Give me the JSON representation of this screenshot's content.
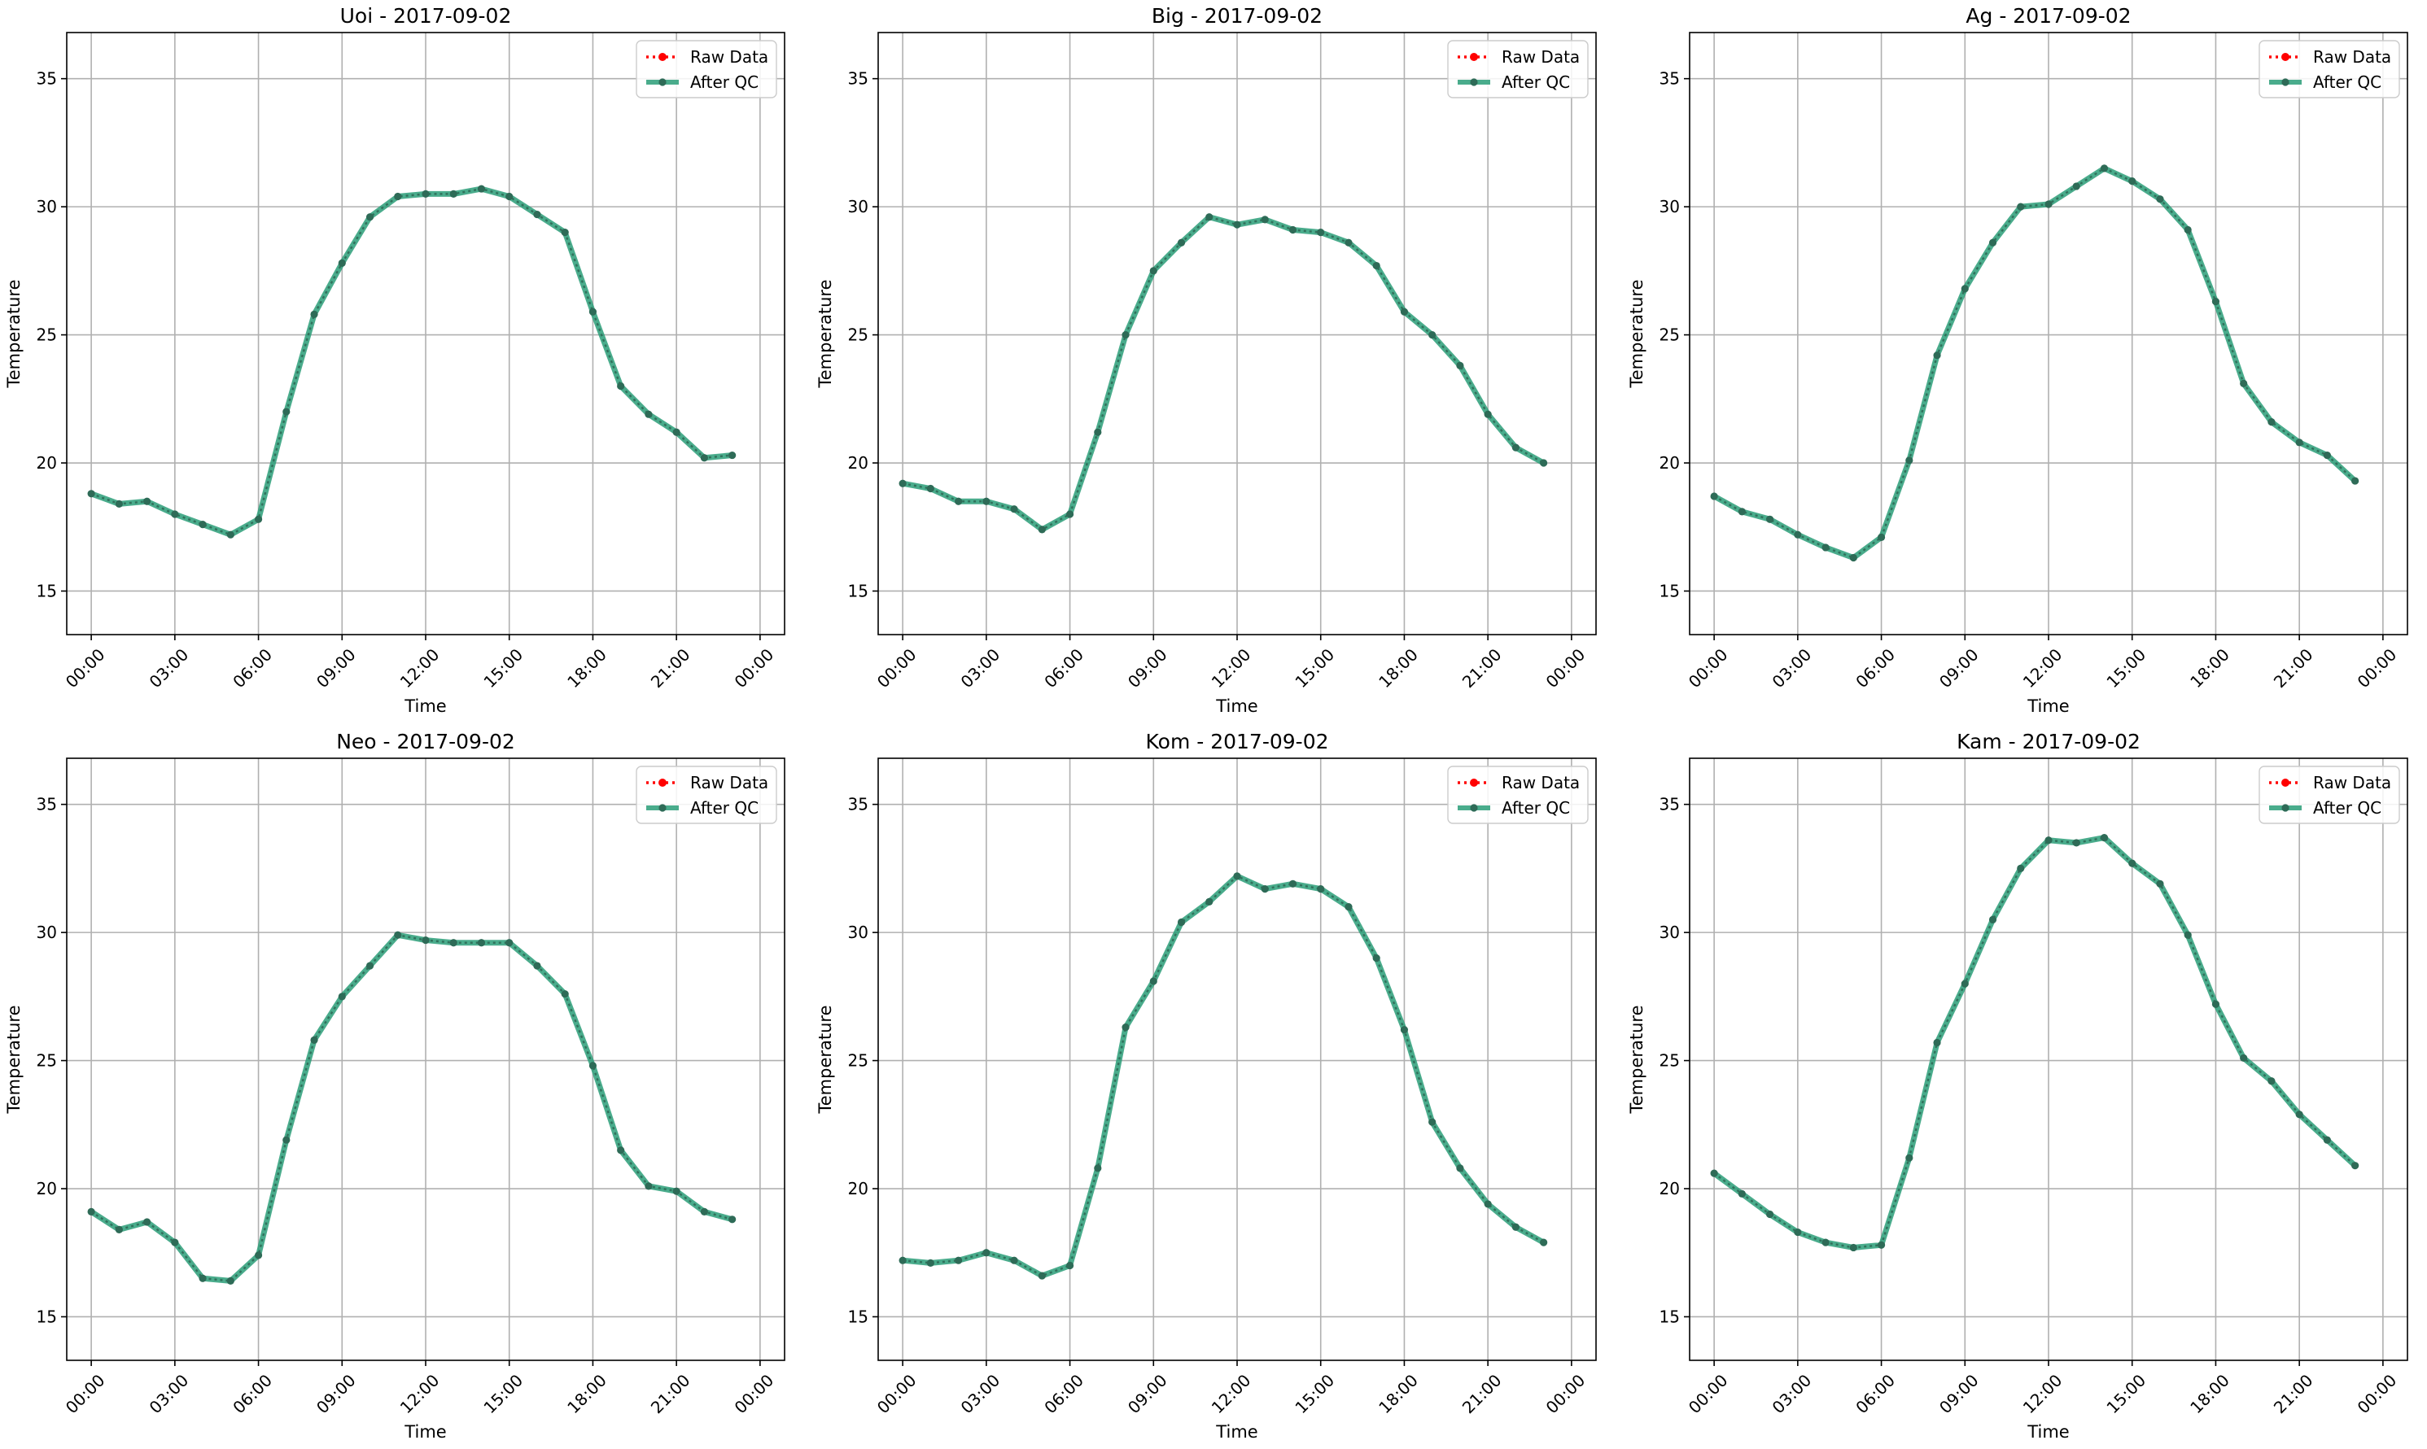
{
  "figure": {
    "legend_labels": {
      "raw": "Raw Data",
      "qc": "After QC"
    },
    "colors": {
      "raw": "#ff0000",
      "qc": "#2a9d78",
      "marker": "#2e6b57",
      "grid": "#b0b0b0"
    }
  },
  "chart_data": [
    {
      "type": "line",
      "title": "Uoi - 2017-09-02",
      "xlabel": "Time",
      "ylabel": "Temperature",
      "ylim": [
        13.3,
        36.8
      ],
      "yticks": [
        "15",
        "20",
        "25",
        "30",
        "35"
      ],
      "xticks": [
        "00:00",
        "03:00",
        "06:00",
        "09:00",
        "12:00",
        "15:00",
        "18:00",
        "21:00",
        "00:00"
      ],
      "grid": true,
      "legend_position": "upper right",
      "x": [
        "00:00",
        "01:00",
        "02:00",
        "03:00",
        "04:00",
        "05:00",
        "06:00",
        "07:00",
        "08:00",
        "09:00",
        "10:00",
        "11:00",
        "12:00",
        "13:00",
        "14:00",
        "15:00",
        "16:00",
        "17:00",
        "18:00",
        "19:00",
        "20:00",
        "21:00",
        "22:00",
        "23:00"
      ],
      "series": [
        {
          "name": "Raw Data",
          "values": [
            18.8,
            18.4,
            18.5,
            18.0,
            17.6,
            17.2,
            17.8,
            22.0,
            25.8,
            27.8,
            29.6,
            30.4,
            30.5,
            30.5,
            30.7,
            30.4,
            29.7,
            29.0,
            25.9,
            23.0,
            21.9,
            21.2,
            20.2,
            20.3
          ]
        },
        {
          "name": "After QC",
          "values": [
            18.8,
            18.4,
            18.5,
            18.0,
            17.6,
            17.2,
            17.8,
            22.0,
            25.8,
            27.8,
            29.6,
            30.4,
            30.5,
            30.5,
            30.7,
            30.4,
            29.7,
            29.0,
            25.9,
            23.0,
            21.9,
            21.2,
            20.2,
            20.3
          ]
        }
      ]
    },
    {
      "type": "line",
      "title": "Big - 2017-09-02",
      "xlabel": "Time",
      "ylabel": "Temperature",
      "ylim": [
        13.3,
        36.8
      ],
      "yticks": [
        "15",
        "20",
        "25",
        "30",
        "35"
      ],
      "xticks": [
        "00:00",
        "03:00",
        "06:00",
        "09:00",
        "12:00",
        "15:00",
        "18:00",
        "21:00",
        "00:00"
      ],
      "grid": true,
      "legend_position": "upper right",
      "x": [
        "00:00",
        "01:00",
        "02:00",
        "03:00",
        "04:00",
        "05:00",
        "06:00",
        "07:00",
        "08:00",
        "09:00",
        "10:00",
        "11:00",
        "12:00",
        "13:00",
        "14:00",
        "15:00",
        "16:00",
        "17:00",
        "18:00",
        "19:00",
        "20:00",
        "21:00",
        "22:00",
        "23:00"
      ],
      "series": [
        {
          "name": "Raw Data",
          "values": [
            19.2,
            19.0,
            18.5,
            18.5,
            18.2,
            17.4,
            18.0,
            21.2,
            25.0,
            27.5,
            28.6,
            29.6,
            29.3,
            29.5,
            29.1,
            29.0,
            28.6,
            27.7,
            25.9,
            25.0,
            23.8,
            21.9,
            20.6,
            20.0
          ]
        },
        {
          "name": "After QC",
          "values": [
            19.2,
            19.0,
            18.5,
            18.5,
            18.2,
            17.4,
            18.0,
            21.2,
            25.0,
            27.5,
            28.6,
            29.6,
            29.3,
            29.5,
            29.1,
            29.0,
            28.6,
            27.7,
            25.9,
            25.0,
            23.8,
            21.9,
            20.6,
            20.0
          ]
        }
      ]
    },
    {
      "type": "line",
      "title": "Ag - 2017-09-02",
      "xlabel": "Time",
      "ylabel": "Temperature",
      "ylim": [
        13.3,
        36.8
      ],
      "yticks": [
        "15",
        "20",
        "25",
        "30",
        "35"
      ],
      "xticks": [
        "00:00",
        "03:00",
        "06:00",
        "09:00",
        "12:00",
        "15:00",
        "18:00",
        "21:00",
        "00:00"
      ],
      "grid": true,
      "legend_position": "upper right",
      "x": [
        "00:00",
        "01:00",
        "02:00",
        "03:00",
        "04:00",
        "05:00",
        "06:00",
        "07:00",
        "08:00",
        "09:00",
        "10:00",
        "11:00",
        "12:00",
        "13:00",
        "14:00",
        "15:00",
        "16:00",
        "17:00",
        "18:00",
        "19:00",
        "20:00",
        "21:00",
        "22:00",
        "23:00"
      ],
      "series": [
        {
          "name": "Raw Data",
          "values": [
            18.7,
            18.1,
            17.8,
            17.2,
            16.7,
            16.3,
            17.1,
            20.1,
            24.2,
            26.8,
            28.6,
            30.0,
            30.1,
            30.8,
            31.5,
            31.0,
            30.3,
            29.1,
            26.3,
            23.1,
            21.6,
            20.8,
            20.3,
            19.3
          ]
        },
        {
          "name": "After QC",
          "values": [
            18.7,
            18.1,
            17.8,
            17.2,
            16.7,
            16.3,
            17.1,
            20.1,
            24.2,
            26.8,
            28.6,
            30.0,
            30.1,
            30.8,
            31.5,
            31.0,
            30.3,
            29.1,
            26.3,
            23.1,
            21.6,
            20.8,
            20.3,
            19.3
          ]
        }
      ]
    },
    {
      "type": "line",
      "title": "Neo - 2017-09-02",
      "xlabel": "Time",
      "ylabel": "Temperature",
      "ylim": [
        13.3,
        36.8
      ],
      "yticks": [
        "15",
        "20",
        "25",
        "30",
        "35"
      ],
      "xticks": [
        "00:00",
        "03:00",
        "06:00",
        "09:00",
        "12:00",
        "15:00",
        "18:00",
        "21:00",
        "00:00"
      ],
      "grid": true,
      "legend_position": "upper right",
      "x": [
        "00:00",
        "01:00",
        "02:00",
        "03:00",
        "04:00",
        "05:00",
        "06:00",
        "07:00",
        "08:00",
        "09:00",
        "10:00",
        "11:00",
        "12:00",
        "13:00",
        "14:00",
        "15:00",
        "16:00",
        "17:00",
        "18:00",
        "19:00",
        "20:00",
        "21:00",
        "22:00",
        "23:00"
      ],
      "series": [
        {
          "name": "Raw Data",
          "values": [
            19.1,
            18.4,
            18.7,
            17.9,
            16.5,
            16.4,
            17.4,
            21.9,
            25.8,
            27.5,
            28.7,
            29.9,
            29.7,
            29.6,
            29.6,
            29.6,
            28.7,
            27.6,
            24.8,
            21.5,
            20.1,
            19.9,
            19.1,
            18.8
          ]
        },
        {
          "name": "After QC",
          "values": [
            19.1,
            18.4,
            18.7,
            17.9,
            16.5,
            16.4,
            17.4,
            21.9,
            25.8,
            27.5,
            28.7,
            29.9,
            29.7,
            29.6,
            29.6,
            29.6,
            28.7,
            27.6,
            24.8,
            21.5,
            20.1,
            19.9,
            19.1,
            18.8
          ]
        }
      ]
    },
    {
      "type": "line",
      "title": "Kom - 2017-09-02",
      "xlabel": "Time",
      "ylabel": "Temperature",
      "ylim": [
        13.3,
        36.8
      ],
      "yticks": [
        "15",
        "20",
        "25",
        "30",
        "35"
      ],
      "xticks": [
        "00:00",
        "03:00",
        "06:00",
        "09:00",
        "12:00",
        "15:00",
        "18:00",
        "21:00",
        "00:00"
      ],
      "grid": true,
      "legend_position": "upper right",
      "x": [
        "00:00",
        "01:00",
        "02:00",
        "03:00",
        "04:00",
        "05:00",
        "06:00",
        "07:00",
        "08:00",
        "09:00",
        "10:00",
        "11:00",
        "12:00",
        "13:00",
        "14:00",
        "15:00",
        "16:00",
        "17:00",
        "18:00",
        "19:00",
        "20:00",
        "21:00",
        "22:00",
        "23:00"
      ],
      "series": [
        {
          "name": "Raw Data",
          "values": [
            17.2,
            17.1,
            17.2,
            17.5,
            17.2,
            16.6,
            17.0,
            20.8,
            26.3,
            28.1,
            30.4,
            31.2,
            32.2,
            31.7,
            31.9,
            31.7,
            31.0,
            29.0,
            26.2,
            22.6,
            20.8,
            19.4,
            18.5,
            17.9
          ]
        },
        {
          "name": "After QC",
          "values": [
            17.2,
            17.1,
            17.2,
            17.5,
            17.2,
            16.6,
            17.0,
            20.8,
            26.3,
            28.1,
            30.4,
            31.2,
            32.2,
            31.7,
            31.9,
            31.7,
            31.0,
            29.0,
            26.2,
            22.6,
            20.8,
            19.4,
            18.5,
            17.9
          ]
        }
      ]
    },
    {
      "type": "line",
      "title": "Kam - 2017-09-02",
      "xlabel": "Time",
      "ylabel": "Temperature",
      "ylim": [
        13.3,
        36.8
      ],
      "yticks": [
        "15",
        "20",
        "25",
        "30",
        "35"
      ],
      "xticks": [
        "00:00",
        "03:00",
        "06:00",
        "09:00",
        "12:00",
        "15:00",
        "18:00",
        "21:00",
        "00:00"
      ],
      "grid": true,
      "legend_position": "upper right",
      "x": [
        "00:00",
        "01:00",
        "02:00",
        "03:00",
        "04:00",
        "05:00",
        "06:00",
        "07:00",
        "08:00",
        "09:00",
        "10:00",
        "11:00",
        "12:00",
        "13:00",
        "14:00",
        "15:00",
        "16:00",
        "17:00",
        "18:00",
        "19:00",
        "20:00",
        "21:00",
        "22:00",
        "23:00"
      ],
      "series": [
        {
          "name": "Raw Data",
          "values": [
            20.6,
            19.8,
            19.0,
            18.3,
            17.9,
            17.7,
            17.8,
            21.2,
            25.7,
            28.0,
            30.5,
            32.5,
            33.6,
            33.5,
            33.7,
            32.7,
            31.9,
            29.9,
            27.2,
            25.1,
            24.2,
            22.9,
            21.9,
            20.9
          ]
        },
        {
          "name": "After QC",
          "values": [
            20.6,
            19.8,
            19.0,
            18.3,
            17.9,
            17.7,
            17.8,
            21.2,
            25.7,
            28.0,
            30.5,
            32.5,
            33.6,
            33.5,
            33.7,
            32.7,
            31.9,
            29.9,
            27.2,
            25.1,
            24.2,
            22.9,
            21.9,
            20.9
          ]
        }
      ]
    }
  ]
}
